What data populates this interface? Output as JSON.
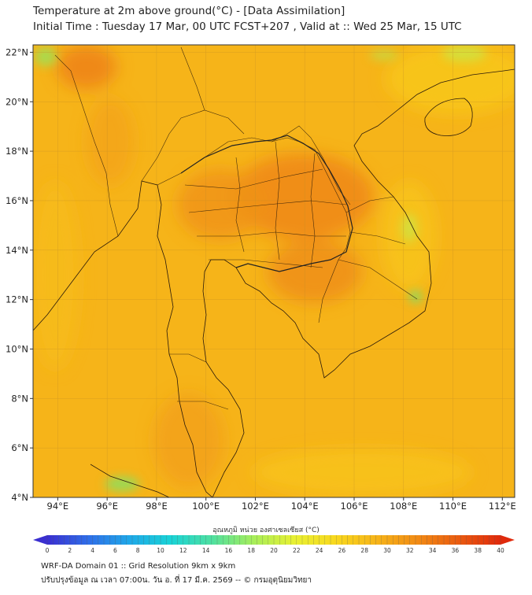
{
  "header": {
    "title_line1": "Temperature at 2m above ground(°C) - [Data Assimilation]",
    "title_line2": "Initial Time : Tuesday 17 Mar, 00 UTC FCST+207 , Valid at :: Wed 25 Mar, 15 UTC"
  },
  "map": {
    "lon_range": [
      93,
      112.5
    ],
    "lat_range": [
      4,
      22.3
    ],
    "lon_ticks": [
      "94°E",
      "96°E",
      "98°E",
      "100°E",
      "102°E",
      "104°E",
      "106°E",
      "108°E",
      "110°E",
      "112°E"
    ],
    "lat_ticks": [
      "4°N",
      "6°N",
      "8°N",
      "10°N",
      "12°N",
      "14°N",
      "16°N",
      "18°N",
      "20°N",
      "22°N"
    ],
    "background_color": "#f6b419",
    "grid": true
  },
  "colorbar": {
    "title": "อุณหภูมิ หน่วย องศาเซลเซียส (°C)",
    "ticks": [
      "0",
      "2",
      "4",
      "6",
      "8",
      "10",
      "12",
      "14",
      "16",
      "18",
      "20",
      "22",
      "24",
      "26",
      "28",
      "30",
      "32",
      "34",
      "36",
      "38",
      "40"
    ],
    "range": [
      0,
      40
    ],
    "colors": [
      "#3a2fd0",
      "#2f6ee8",
      "#1fa8e8",
      "#19d3d6",
      "#4fe0a0",
      "#a6ee5a",
      "#e8f032",
      "#f8d81e",
      "#f6b419",
      "#f18a14",
      "#e95a10",
      "#e02a0c"
    ]
  },
  "footer": {
    "line1": "WRF-DA Domain 01 :: Grid Resolution 9km x 9km",
    "line2": "ปรับปรุงข้อมูล ณ เวลา 07:00น. วัน อ. ที่ 17 มี.ค. 2569 -- © กรมอุตุนิยมวิทยา"
  }
}
